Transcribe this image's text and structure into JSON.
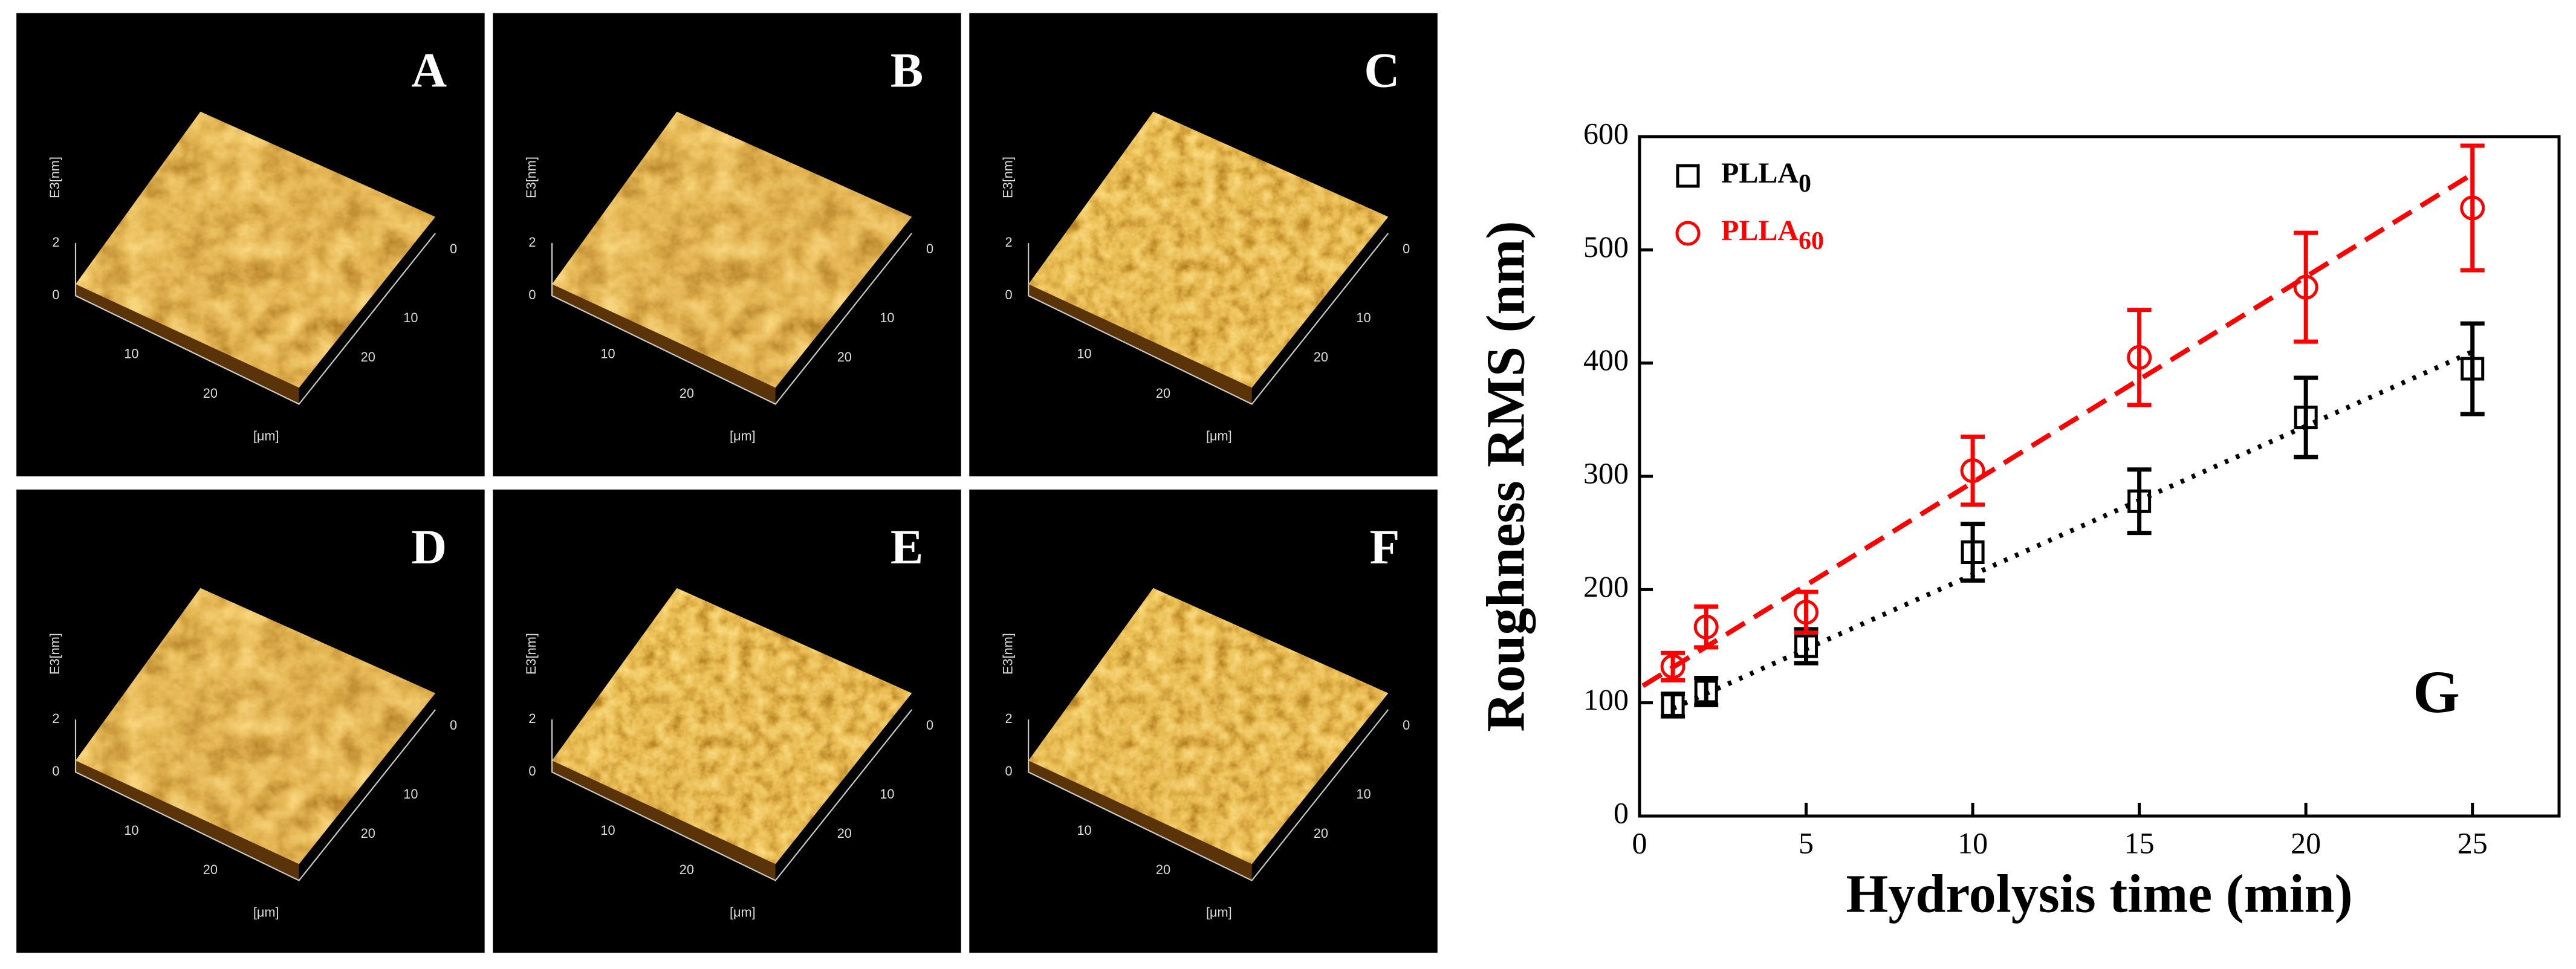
{
  "panels": [
    {
      "label": "A",
      "z_axis": "E3[nm]",
      "z_ticks": [
        "2",
        "0"
      ],
      "x_ticks": [
        "10",
        "20"
      ],
      "y_ticks": [
        "0",
        "10",
        "20"
      ],
      "unit": "[μm]"
    },
    {
      "label": "B",
      "z_axis": "E3[nm]",
      "z_ticks": [
        "2",
        "0"
      ],
      "x_ticks": [
        "10",
        "20"
      ],
      "y_ticks": [
        "0",
        "10",
        "20"
      ],
      "unit": "[μm]"
    },
    {
      "label": "C",
      "z_axis": "E3[nm]",
      "z_ticks": [
        "2",
        "0"
      ],
      "x_ticks": [
        "10",
        "20"
      ],
      "y_ticks": [
        "0",
        "10",
        "20"
      ],
      "unit": "[μm]"
    },
    {
      "label": "D",
      "z_axis": "E3[nm]",
      "z_ticks": [
        "2",
        "0"
      ],
      "x_ticks": [
        "10",
        "20"
      ],
      "y_ticks": [
        "0",
        "10",
        "20"
      ],
      "unit": "[μm]"
    },
    {
      "label": "E",
      "z_axis": "E3[nm]",
      "z_ticks": [
        "2",
        "0"
      ],
      "x_ticks": [
        "10",
        "20"
      ],
      "y_ticks": [
        "0",
        "10",
        "20"
      ],
      "unit": "[μm]"
    },
    {
      "label": "F",
      "z_axis": "E3[nm]",
      "z_ticks": [
        "2",
        "0"
      ],
      "x_ticks": [
        "10",
        "20"
      ],
      "y_ticks": [
        "0",
        "10",
        "20"
      ],
      "unit": "[μm]"
    }
  ],
  "chart_data": {
    "type": "scatter",
    "annotation": "G",
    "x_label": "Hydrolysis time (min)",
    "y_label": "Roughness RMS (nm)",
    "x": [
      1,
      2,
      5,
      10,
      15,
      20,
      25
    ],
    "series": [
      {
        "name": "PLLA0",
        "color": "#000000",
        "marker": "square",
        "fit_style": "dotted",
        "values": [
          98,
          110,
          150,
          233,
          278,
          352,
          395
        ],
        "errors": [
          10,
          12,
          15,
          25,
          28,
          35,
          40
        ],
        "fit": {
          "x": [
            1,
            25
          ],
          "y": [
            95,
            410
          ]
        }
      },
      {
        "name": "PLLA60",
        "color": "#ff0000",
        "marker": "circle",
        "fit_style": "dashed",
        "values": [
          132,
          167,
          180,
          305,
          405,
          467,
          537
        ],
        "errors": [
          12,
          18,
          18,
          30,
          42,
          48,
          55
        ],
        "fit": {
          "x": [
            0.1,
            25
          ],
          "y": [
            115,
            567
          ]
        }
      }
    ],
    "xlim": [
      0,
      27.6
    ],
    "ylim": [
      0,
      600
    ],
    "xticks": [
      0,
      5,
      10,
      15,
      20,
      25
    ],
    "yticks": [
      0,
      100,
      200,
      300,
      400,
      500,
      600
    ],
    "legend": "upper left",
    "grid": false
  }
}
